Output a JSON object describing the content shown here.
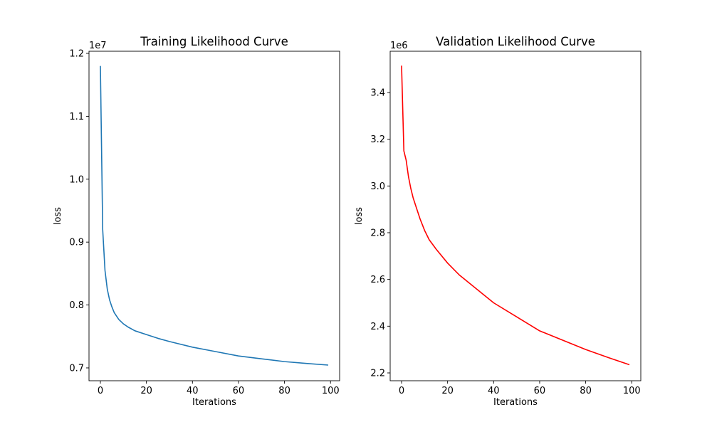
{
  "chart_data": [
    {
      "type": "line",
      "title": "Training Likelihood Curve",
      "xlabel": "Iterations",
      "ylabel": "loss",
      "offset_label": "1e7",
      "color": "#1f77b4",
      "xlim": [
        -4.95,
        103.95
      ],
      "ylim": [
        0.6796,
        1.2034
      ],
      "xticks": [
        0,
        20,
        40,
        60,
        80,
        100
      ],
      "yticks": [
        0.7,
        0.8,
        0.9,
        1.0,
        1.1,
        1.2
      ],
      "ytick_labels": [
        "0.7",
        "0.8",
        "0.9",
        "1.0",
        "1.1",
        "1.2"
      ],
      "grid": false,
      "x": [
        0,
        1,
        2,
        3,
        4,
        5,
        6,
        8,
        10,
        12,
        15,
        20,
        25,
        30,
        40,
        50,
        60,
        70,
        80,
        90,
        99
      ],
      "y": [
        1.18,
        0.92,
        0.855,
        0.825,
        0.808,
        0.797,
        0.788,
        0.777,
        0.77,
        0.765,
        0.759,
        0.753,
        0.747,
        0.742,
        0.733,
        0.726,
        0.719,
        0.7145,
        0.71,
        0.707,
        0.7045
      ]
    },
    {
      "type": "line",
      "title": "Validation Likelihood Curve",
      "xlabel": "Iterations",
      "ylabel": "loss",
      "offset_label": "1e6",
      "color": "#ff0000",
      "xlim": [
        -4.95,
        103.95
      ],
      "ylim": [
        2.1665,
        3.5766
      ],
      "xticks": [
        0,
        20,
        40,
        60,
        80,
        100
      ],
      "yticks": [
        2.2,
        2.4,
        2.6,
        2.8,
        3.0,
        3.2,
        3.4
      ],
      "ytick_labels": [
        "2.2",
        "2.4",
        "2.6",
        "2.8",
        "3.0",
        "3.2",
        "3.4"
      ],
      "grid": false,
      "x": [
        0,
        1,
        2,
        3,
        4,
        5,
        6,
        8,
        10,
        12,
        15,
        20,
        25,
        30,
        40,
        50,
        60,
        70,
        80,
        90,
        99
      ],
      "y": [
        3.515,
        3.15,
        3.11,
        3.04,
        2.99,
        2.95,
        2.92,
        2.86,
        2.81,
        2.77,
        2.73,
        2.67,
        2.62,
        2.58,
        2.5,
        2.44,
        2.38,
        2.34,
        2.3,
        2.265,
        2.235
      ]
    }
  ]
}
